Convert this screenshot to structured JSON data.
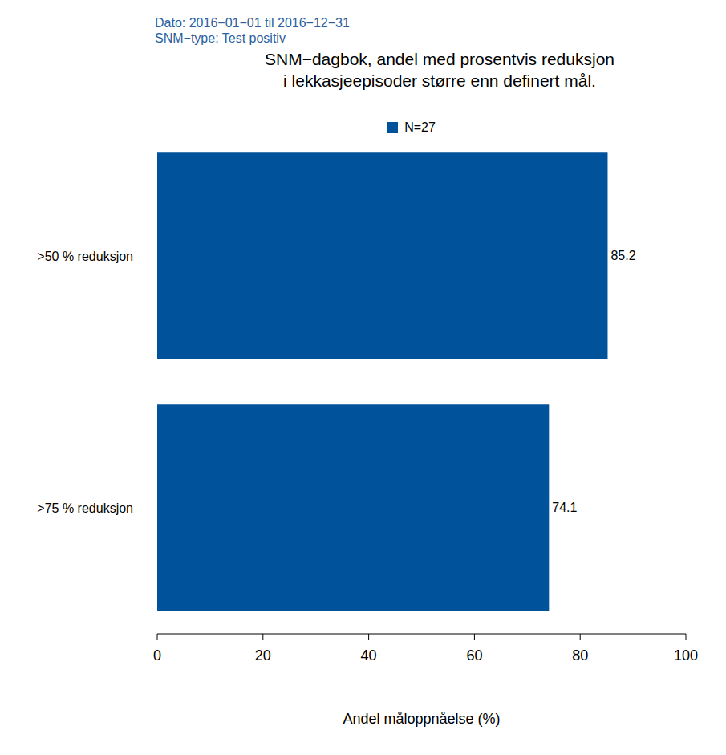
{
  "chart_data": {
    "type": "bar",
    "orientation": "horizontal",
    "title": "SNM−dagbok, andel med prosentvis reduksjon\ni lekkasjeepisoder større enn definert mål.",
    "subtitle": [
      "Dato: 2016−01−01 til 2016−12−31",
      "SNM−type: Test positiv"
    ],
    "categories": [
      ">50 % reduksjon",
      ">75 % reduksjon"
    ],
    "series": [
      {
        "name": "N=27",
        "color": "#00529b",
        "values": [
          85.2,
          74.1
        ]
      }
    ],
    "xlabel": "Andel måloppnåelse (%)",
    "xlim": [
      0,
      100
    ],
    "xticks": [
      0,
      20,
      40,
      60,
      80,
      100
    ],
    "data_labels": true,
    "grid": false,
    "legend": "top"
  }
}
